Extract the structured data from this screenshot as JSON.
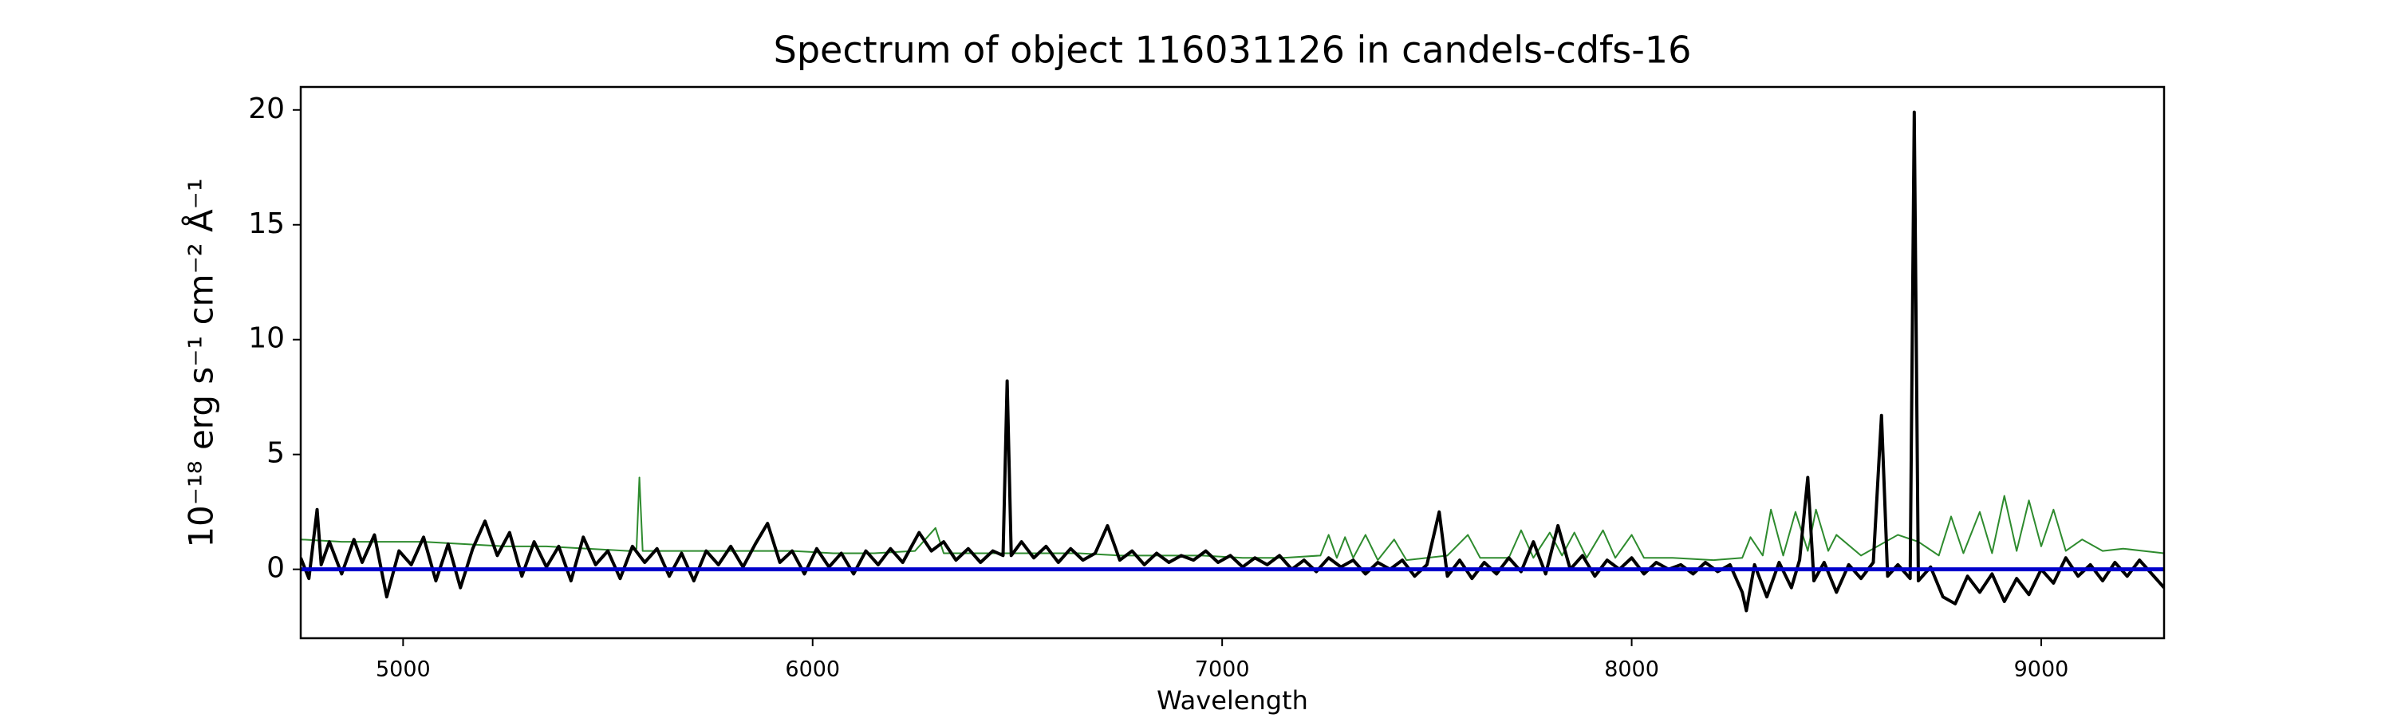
{
  "chart_data": {
    "type": "line",
    "title": "Spectrum of object 116031126 in candels-cdfs-16",
    "xlabel": "Wavelength",
    "ylabel": "10⁻¹⁸ erg s⁻¹ cm⁻² Å⁻¹",
    "xlim": [
      4750,
      9300
    ],
    "xticks": [
      5000,
      6000,
      7000,
      8000,
      9000
    ],
    "ylim": [
      -3,
      21
    ],
    "yticks": [
      0,
      5,
      10,
      15,
      20
    ],
    "grid": false,
    "series": [
      {
        "color": "#2e8b2e",
        "width": 1,
        "x": [
          4750,
          4850,
          4950,
          5050,
          5150,
          5250,
          5350,
          5450,
          5550,
          5570,
          5577,
          5585,
          5650,
          5750,
          5850,
          5950,
          6050,
          6150,
          6250,
          6300,
          6320,
          6450,
          6550,
          6650,
          6750,
          6850,
          6950,
          7050,
          7150,
          7240,
          7260,
          7280,
          7300,
          7320,
          7350,
          7380,
          7420,
          7450,
          7550,
          7600,
          7630,
          7700,
          7730,
          7760,
          7800,
          7830,
          7860,
          7890,
          7930,
          7960,
          8000,
          8030,
          8100,
          8200,
          8270,
          8290,
          8320,
          8340,
          8370,
          8400,
          8430,
          8450,
          8480,
          8500,
          8560,
          8650,
          8700,
          8750,
          8780,
          8810,
          8850,
          8880,
          8910,
          8940,
          8970,
          9000,
          9030,
          9060,
          9100,
          9150,
          9200,
          9250,
          9300
        ],
        "values": [
          1.3,
          1.2,
          1.2,
          1.2,
          1.1,
          1.0,
          1.0,
          0.9,
          0.8,
          0.9,
          4.0,
          0.8,
          0.8,
          0.8,
          0.8,
          0.8,
          0.7,
          0.7,
          0.8,
          1.8,
          0.7,
          0.7,
          0.7,
          0.7,
          0.6,
          0.6,
          0.6,
          0.5,
          0.5,
          0.6,
          1.5,
          0.5,
          1.4,
          0.5,
          1.5,
          0.4,
          1.3,
          0.4,
          0.6,
          1.5,
          0.5,
          0.5,
          1.7,
          0.5,
          1.6,
          0.6,
          1.6,
          0.5,
          1.7,
          0.5,
          1.5,
          0.5,
          0.5,
          0.4,
          0.5,
          1.4,
          0.6,
          2.6,
          0.6,
          2.5,
          0.8,
          2.6,
          0.8,
          1.5,
          0.6,
          1.5,
          1.2,
          0.6,
          2.3,
          0.7,
          2.5,
          0.7,
          3.2,
          0.8,
          3.0,
          1.0,
          2.6,
          0.8,
          1.3,
          0.8,
          0.9,
          0.8,
          0.7
        ]
      },
      {
        "color": "#000000",
        "width": 2,
        "x": [
          4750,
          4770,
          4790,
          4800,
          4820,
          4850,
          4880,
          4900,
          4930,
          4960,
          4990,
          5020,
          5050,
          5080,
          5110,
          5140,
          5170,
          5200,
          5230,
          5260,
          5290,
          5320,
          5350,
          5380,
          5410,
          5440,
          5470,
          5500,
          5530,
          5560,
          5590,
          5620,
          5650,
          5680,
          5710,
          5740,
          5770,
          5800,
          5830,
          5860,
          5890,
          5920,
          5950,
          5980,
          6010,
          6040,
          6070,
          6100,
          6130,
          6160,
          6190,
          6220,
          6260,
          6290,
          6320,
          6350,
          6380,
          6410,
          6440,
          6465,
          6475,
          6485,
          6510,
          6540,
          6570,
          6600,
          6630,
          6660,
          6690,
          6720,
          6750,
          6780,
          6810,
          6840,
          6870,
          6900,
          6930,
          6960,
          6990,
          7020,
          7050,
          7080,
          7110,
          7140,
          7170,
          7200,
          7230,
          7260,
          7290,
          7320,
          7350,
          7380,
          7410,
          7440,
          7470,
          7500,
          7530,
          7550,
          7580,
          7610,
          7640,
          7670,
          7700,
          7730,
          7760,
          7790,
          7820,
          7850,
          7880,
          7910,
          7940,
          7970,
          8000,
          8030,
          8060,
          8090,
          8120,
          8150,
          8180,
          8210,
          8240,
          8270,
          8280,
          8300,
          8330,
          8360,
          8390,
          8410,
          8430,
          8445,
          8470,
          8500,
          8530,
          8560,
          8590,
          8610,
          8625,
          8650,
          8680,
          8690,
          8700,
          8730,
          8760,
          8790,
          8820,
          8850,
          8880,
          8910,
          8940,
          8970,
          9000,
          9030,
          9060,
          9090,
          9120,
          9150,
          9180,
          9210,
          9240,
          9270,
          9300
        ],
        "values": [
          0.5,
          -0.4,
          2.6,
          0.2,
          1.2,
          -0.2,
          1.3,
          0.3,
          1.5,
          -1.2,
          0.8,
          0.2,
          1.4,
          -0.5,
          1.1,
          -0.8,
          0.9,
          2.1,
          0.6,
          1.6,
          -0.3,
          1.2,
          0.1,
          1.0,
          -0.5,
          1.4,
          0.2,
          0.8,
          -0.4,
          1.0,
          0.3,
          0.9,
          -0.3,
          0.7,
          -0.5,
          0.8,
          0.2,
          1.0,
          0.1,
          1.1,
          2.0,
          0.3,
          0.8,
          -0.2,
          0.9,
          0.1,
          0.7,
          -0.2,
          0.8,
          0.2,
          0.9,
          0.3,
          1.6,
          0.8,
          1.2,
          0.4,
          0.9,
          0.3,
          0.8,
          0.6,
          8.2,
          0.6,
          1.2,
          0.5,
          1.0,
          0.3,
          0.9,
          0.4,
          0.7,
          1.9,
          0.4,
          0.8,
          0.2,
          0.7,
          0.3,
          0.6,
          0.4,
          0.8,
          0.3,
          0.6,
          0.1,
          0.5,
          0.2,
          0.6,
          0.0,
          0.4,
          -0.1,
          0.5,
          0.1,
          0.4,
          -0.2,
          0.3,
          0.0,
          0.4,
          -0.3,
          0.2,
          2.5,
          -0.3,
          0.4,
          -0.4,
          0.3,
          -0.2,
          0.5,
          -0.1,
          1.2,
          -0.2,
          1.9,
          0.0,
          0.6,
          -0.3,
          0.4,
          0.0,
          0.5,
          -0.2,
          0.3,
          0.0,
          0.2,
          -0.2,
          0.3,
          -0.1,
          0.2,
          -1.0,
          -1.8,
          0.2,
          -1.2,
          0.3,
          -0.8,
          0.4,
          4.0,
          -0.5,
          0.3,
          -1.0,
          0.2,
          -0.4,
          0.3,
          6.7,
          -0.3,
          0.2,
          -0.4,
          19.9,
          -0.5,
          0.1,
          -1.2,
          -1.5,
          -0.3,
          -1.0,
          -0.2,
          -1.4,
          -0.4,
          -1.1,
          0.0,
          -0.6,
          0.5,
          -0.3,
          0.2,
          -0.5,
          0.3,
          -0.3,
          0.4,
          -0.2,
          -0.8
        ]
      },
      {
        "color": "#0000cc",
        "width": 2.5,
        "x": [
          4750,
          9300
        ],
        "values": [
          0,
          0
        ]
      }
    ]
  }
}
